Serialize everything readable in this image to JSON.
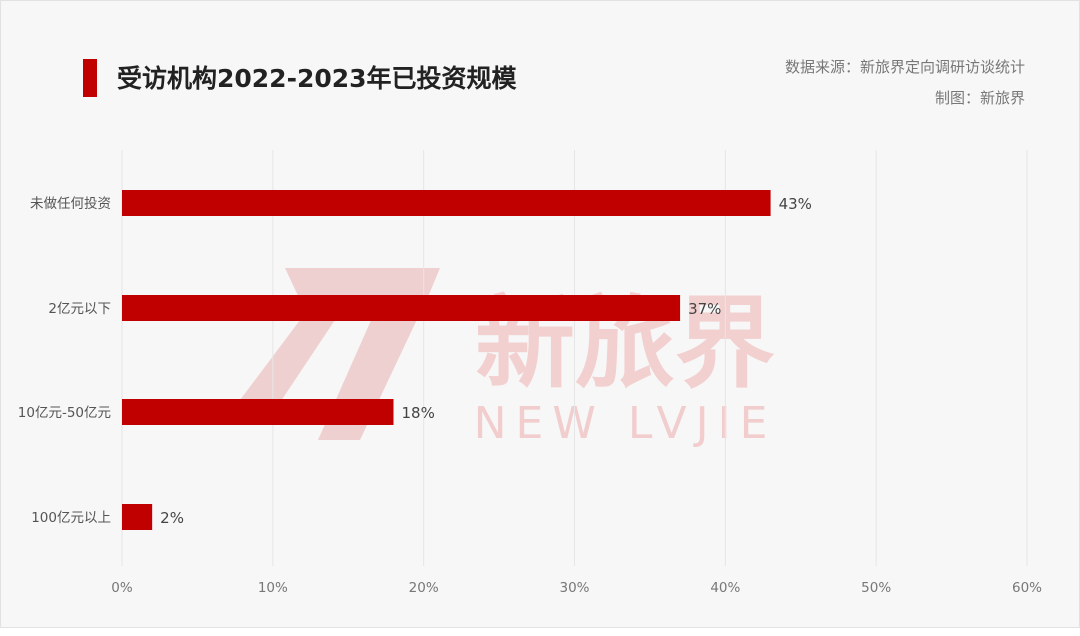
{
  "header": {
    "title": "受访机构2022-2023年已投资规模",
    "source": "数据来源：新旅界定向调研访谈统计",
    "credit": "制图：新旅界"
  },
  "watermark": {
    "brand_cn": "新旅界",
    "brand_en": "NEW LVJIE"
  },
  "colors": {
    "bar": "#c00000",
    "accent": "#c00000",
    "watermark": "#f0c9c9"
  },
  "chart_data": {
    "type": "bar",
    "orientation": "horizontal",
    "categories": [
      "未做任何投资",
      "2亿元以下",
      "10亿元-50亿元",
      "100亿元以上"
    ],
    "values": [
      43,
      37,
      18,
      2
    ],
    "data_labels": [
      "43%",
      "37%",
      "18%",
      "2%"
    ],
    "xlim": [
      0,
      60
    ],
    "xticks": [
      0,
      10,
      20,
      30,
      40,
      50,
      60
    ],
    "xtick_labels": [
      "0%",
      "10%",
      "20%",
      "30%",
      "40%",
      "50%",
      "60%"
    ],
    "grid": "vertical",
    "legend": "none"
  }
}
